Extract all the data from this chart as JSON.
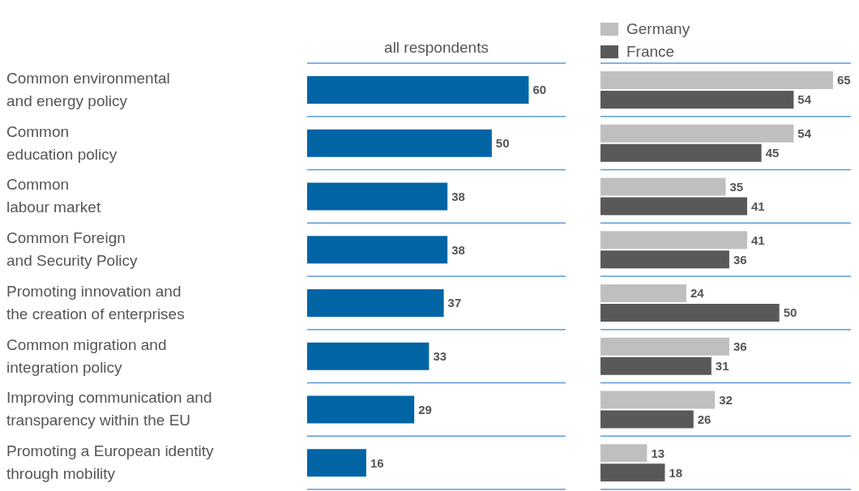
{
  "chart_data": [
    {
      "type": "bar",
      "orientation": "horizontal",
      "title": "all respondents",
      "categories": [
        "Common environmental\nand energy policy",
        "Common\neducation policy",
        "Common\nlabour market",
        "Common Foreign\nand Security Policy",
        "Promoting innovation and\nthe creation of enterprises",
        "Common migration and\nintegration policy",
        "Improving communication and\ntransparency within the EU",
        "Promoting a European identity\nthrough mobility"
      ],
      "values": [
        60,
        50,
        38,
        38,
        37,
        33,
        29,
        16
      ],
      "color": "#0064a5",
      "xlim": [
        0,
        70
      ],
      "data_labels": true,
      "tick_labels": "y",
      "grid": "y",
      "legend": false
    },
    {
      "type": "bar",
      "orientation": "horizontal",
      "categories": [
        null,
        null,
        null,
        null,
        null,
        null,
        null,
        null
      ],
      "series": [
        {
          "name": "Germany",
          "color": "#bfbfbf",
          "values": [
            65,
            54,
            35,
            41,
            24,
            36,
            32,
            13
          ]
        },
        {
          "name": "France",
          "color": "#595959",
          "values": [
            54,
            45,
            41,
            36,
            50,
            31,
            26,
            18
          ]
        }
      ],
      "xlim": [
        0,
        70
      ],
      "data_labels": true,
      "tick_labels": false,
      "grid": "y",
      "legend": "top left"
    }
  ]
}
